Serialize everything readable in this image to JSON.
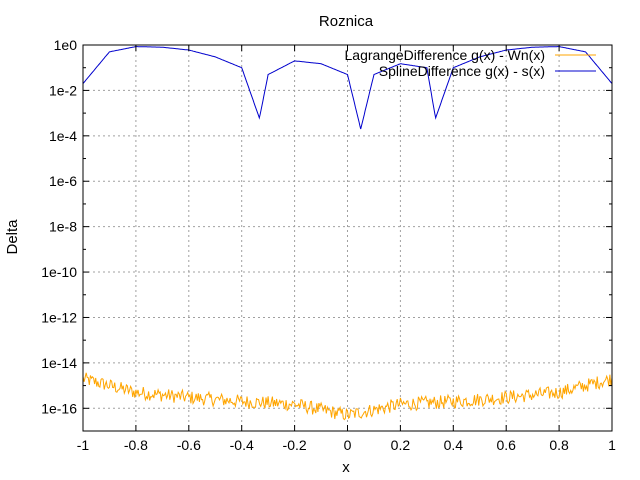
{
  "chart_data": {
    "type": "line",
    "title": "Roznica",
    "xlabel": "x",
    "ylabel": "Delta",
    "xlim": [
      -1,
      1
    ],
    "ylim": [
      -17,
      0
    ],
    "yscale": "log",
    "grid": true,
    "legend_position": "top-right",
    "x_ticks": [
      "-1",
      "-0.8",
      "-0.6",
      "-0.4",
      "-0.2",
      "0",
      "0.2",
      "0.4",
      "0.6",
      "0.8",
      "1"
    ],
    "y_ticks": [
      "1e0",
      "1e-2",
      "1e-4",
      "1e-6",
      "1e-8",
      "1e-10",
      "1e-12",
      "1e-14",
      "1e-16"
    ],
    "series": [
      {
        "name": "LagrangeDifference g(x) - Wn(x)",
        "color": "#ffa500",
        "x": [
          -1,
          -0.8,
          -0.6,
          -0.4,
          -0.2,
          0,
          0.2,
          0.4,
          0.6,
          0.8,
          1
        ],
        "y": [
          2e-15,
          5e-16,
          3e-16,
          2e-16,
          1.5e-16,
          5e-17,
          1.5e-16,
          2e-16,
          3e-16,
          5e-16,
          2e-15
        ]
      },
      {
        "name": "SplineDifference g(x) - s(x)",
        "color": "#0000cd",
        "x": [
          -1,
          -0.9,
          -0.8,
          -0.7,
          -0.6,
          -0.5,
          -0.4,
          -0.333,
          -0.3,
          -0.2,
          -0.1,
          0.0,
          0.05,
          0.1,
          0.2,
          0.3,
          0.333,
          0.4,
          0.5,
          0.6,
          0.7,
          0.8,
          0.9,
          1
        ],
        "y": [
          0.02,
          0.5,
          0.85,
          0.8,
          0.6,
          0.3,
          0.1,
          0.0006,
          0.05,
          0.2,
          0.15,
          0.05,
          0.0002,
          0.05,
          0.15,
          0.1,
          0.0006,
          0.1,
          0.3,
          0.6,
          0.8,
          0.85,
          0.5,
          0.02
        ]
      }
    ]
  }
}
